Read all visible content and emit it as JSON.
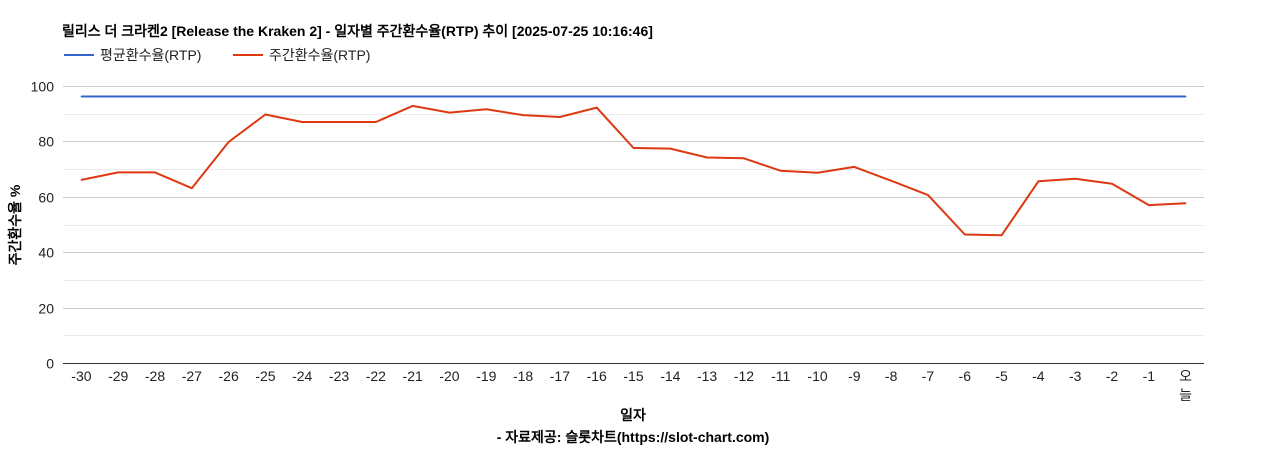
{
  "title": "릴리스 더 크라켄2 [Release the Kraken 2] - 일자별 주간환수율(RTP) 추이 [2025-07-25 10:16:46]",
  "source": "- 자료제공: 슬롯차트(https://slot-chart.com)",
  "colors": {
    "average": "#3366cc",
    "weekly": "#dc3912"
  },
  "chart_data": {
    "type": "line",
    "title": "릴리스 더 크라켄2 [Release the Kraken 2] - 일자별 주간환수율(RTP) 추이 [2025-07-25 10:16:46]",
    "xlabel": "일자",
    "ylabel": "주간환수율 %",
    "ylim": [
      0,
      100
    ],
    "yticks": [
      0,
      20,
      40,
      60,
      80,
      100
    ],
    "grid": true,
    "legend_position": "top-left",
    "categories": [
      "-30",
      "-29",
      "-28",
      "-27",
      "-26",
      "-25",
      "-24",
      "-23",
      "-22",
      "-21",
      "-20",
      "-19",
      "-18",
      "-17",
      "-16",
      "-15",
      "-14",
      "-13",
      "-12",
      "-11",
      "-10",
      "-9",
      "-8",
      "-7",
      "-6",
      "-5",
      "-4",
      "-3",
      "-2",
      "-1",
      "오늘"
    ],
    "series": [
      {
        "name": "평균환수율(RTP)",
        "color": "#3366cc",
        "values": [
          96.2,
          96.2,
          96.2,
          96.2,
          96.2,
          96.2,
          96.2,
          96.2,
          96.2,
          96.2,
          96.2,
          96.2,
          96.2,
          96.2,
          96.2,
          96.2,
          96.2,
          96.2,
          96.2,
          96.2,
          96.2,
          96.2,
          96.2,
          96.2,
          96.2,
          96.2,
          96.2,
          96.2,
          96.2,
          96.2,
          96.2
        ]
      },
      {
        "name": "주간환수율(RTP)",
        "color": "#dc3912",
        "values": [
          66.1,
          68.8,
          68.8,
          63.1,
          79.8,
          89.7,
          87.0,
          87.0,
          87.0,
          92.8,
          90.4,
          91.6,
          89.5,
          88.8,
          92.2,
          77.6,
          77.4,
          74.2,
          73.9,
          69.4,
          68.7,
          70.8,
          65.8,
          60.6,
          46.4,
          46.1,
          65.6,
          66.5,
          64.7,
          57.0,
          57.7
        ]
      }
    ]
  }
}
